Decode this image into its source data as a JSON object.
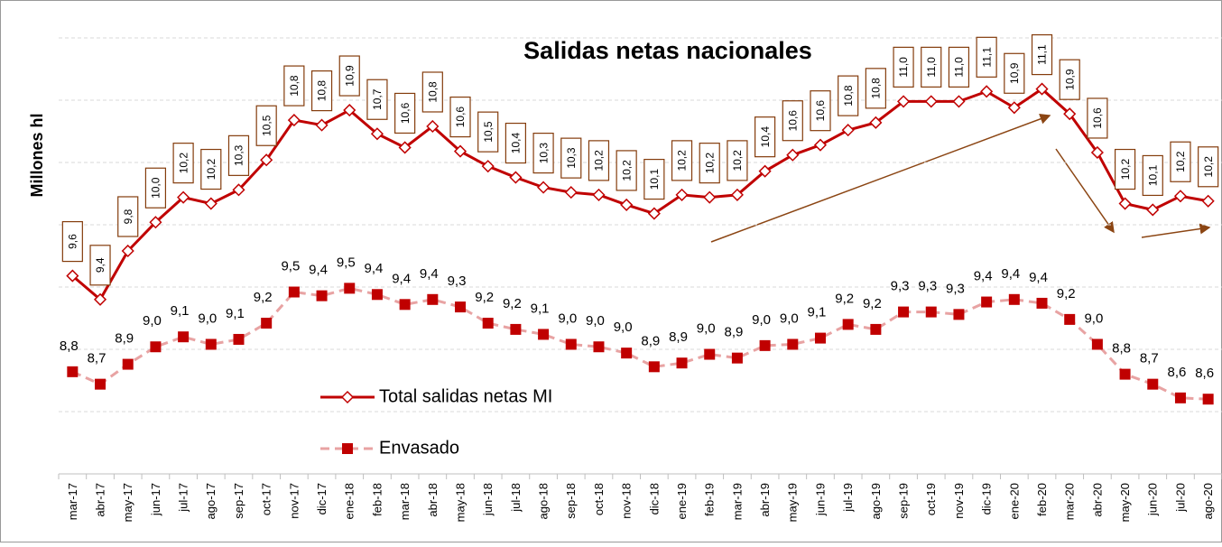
{
  "chart_data": {
    "type": "line",
    "title": "Salidas netas nacionales",
    "y_label": "Millones hl",
    "categories": [
      "mar-17",
      "abr-17",
      "may-17",
      "jun-17",
      "jul-17",
      "ago-17",
      "sep-17",
      "oct-17",
      "nov-17",
      "dic-17",
      "ene-18",
      "feb-18",
      "mar-18",
      "abr-18",
      "may-18",
      "jun-18",
      "jul-18",
      "ago-18",
      "sep-18",
      "oct-18",
      "nov-18",
      "dic-18",
      "ene-19",
      "feb-19",
      "mar-19",
      "abr-19",
      "may-19",
      "jun-19",
      "jul-19",
      "ago-19",
      "sep-19",
      "oct-19",
      "nov-19",
      "dic-19",
      "ene-20",
      "feb-20",
      "mar-20",
      "abr-20",
      "may-20",
      "jun-20",
      "jul-20",
      "ago-20"
    ],
    "series": [
      {
        "name": "Total salidas netas MI",
        "color": "#c00000",
        "marker": "diamond",
        "dashed": false,
        "values": [
          9.59,
          9.4,
          9.79,
          10.02,
          10.22,
          10.17,
          10.28,
          10.52,
          10.84,
          10.8,
          10.92,
          10.73,
          10.62,
          10.79,
          10.59,
          10.47,
          10.38,
          10.3,
          10.26,
          10.24,
          10.16,
          10.09,
          10.24,
          10.22,
          10.24,
          10.43,
          10.56,
          10.64,
          10.76,
          10.82,
          10.99,
          10.99,
          10.99,
          11.07,
          10.94,
          11.09,
          10.89,
          10.58,
          10.17,
          10.12,
          10.23,
          10.19
        ],
        "value_labels": [
          "9,6",
          "9,4",
          "9,8",
          "10,0",
          "10,2",
          "10,2",
          "10,3",
          "10,5",
          "10,8",
          "10,8",
          "10,9",
          "10,7",
          "10,6",
          "10,8",
          "10,6",
          "10,5",
          "10,4",
          "10,3",
          "10,3",
          "10,2",
          "10,2",
          "10,1",
          "10,2",
          "10,2",
          "10,2",
          "10,4",
          "10,6",
          "10,6",
          "10,8",
          "10,8",
          "11,0",
          "11,0",
          "11,0",
          "11,1",
          "10,9",
          "11,1",
          "10,9",
          "10,6",
          "10,2",
          "10,1",
          "10,2",
          "10,2"
        ]
      },
      {
        "name": "Envasado",
        "color": "#e8a3a3",
        "marker_color": "#c00000",
        "marker": "square",
        "dashed": true,
        "values": [
          8.82,
          8.72,
          8.88,
          9.02,
          9.1,
          9.04,
          9.08,
          9.21,
          9.46,
          9.43,
          9.49,
          9.44,
          9.36,
          9.4,
          9.34,
          9.21,
          9.16,
          9.12,
          9.04,
          9.02,
          8.97,
          8.86,
          8.89,
          8.96,
          8.93,
          9.03,
          9.04,
          9.09,
          9.2,
          9.16,
          9.3,
          9.3,
          9.28,
          9.38,
          9.4,
          9.37,
          9.24,
          9.04,
          8.8,
          8.72,
          8.61,
          8.6
        ],
        "value_labels": [
          "8,8",
          "8,7",
          "8,9",
          "9,0",
          "9,1",
          "9,0",
          "9,1",
          "9,2",
          "9,5",
          "9,4",
          "9,5",
          "9,4",
          "9,4",
          "9,4",
          "9,3",
          "9,2",
          "9,2",
          "9,1",
          "9,0",
          "9,0",
          "9,0",
          "8,9",
          "8,9",
          "9,0",
          "8,9",
          "9,0",
          "9,0",
          "9,1",
          "9,2",
          "9,2",
          "9,3",
          "9,3",
          "9,3",
          "9,4",
          "9,4",
          "9,4",
          "9,2",
          "9,0",
          "8,8",
          "8,7",
          "8,6",
          "8,6"
        ]
      }
    ],
    "ylim": [
      8,
      11.5
    ],
    "yticks": [
      8,
      8.5,
      9,
      9.5,
      10,
      10.5,
      11,
      11.5
    ],
    "grid": true
  }
}
